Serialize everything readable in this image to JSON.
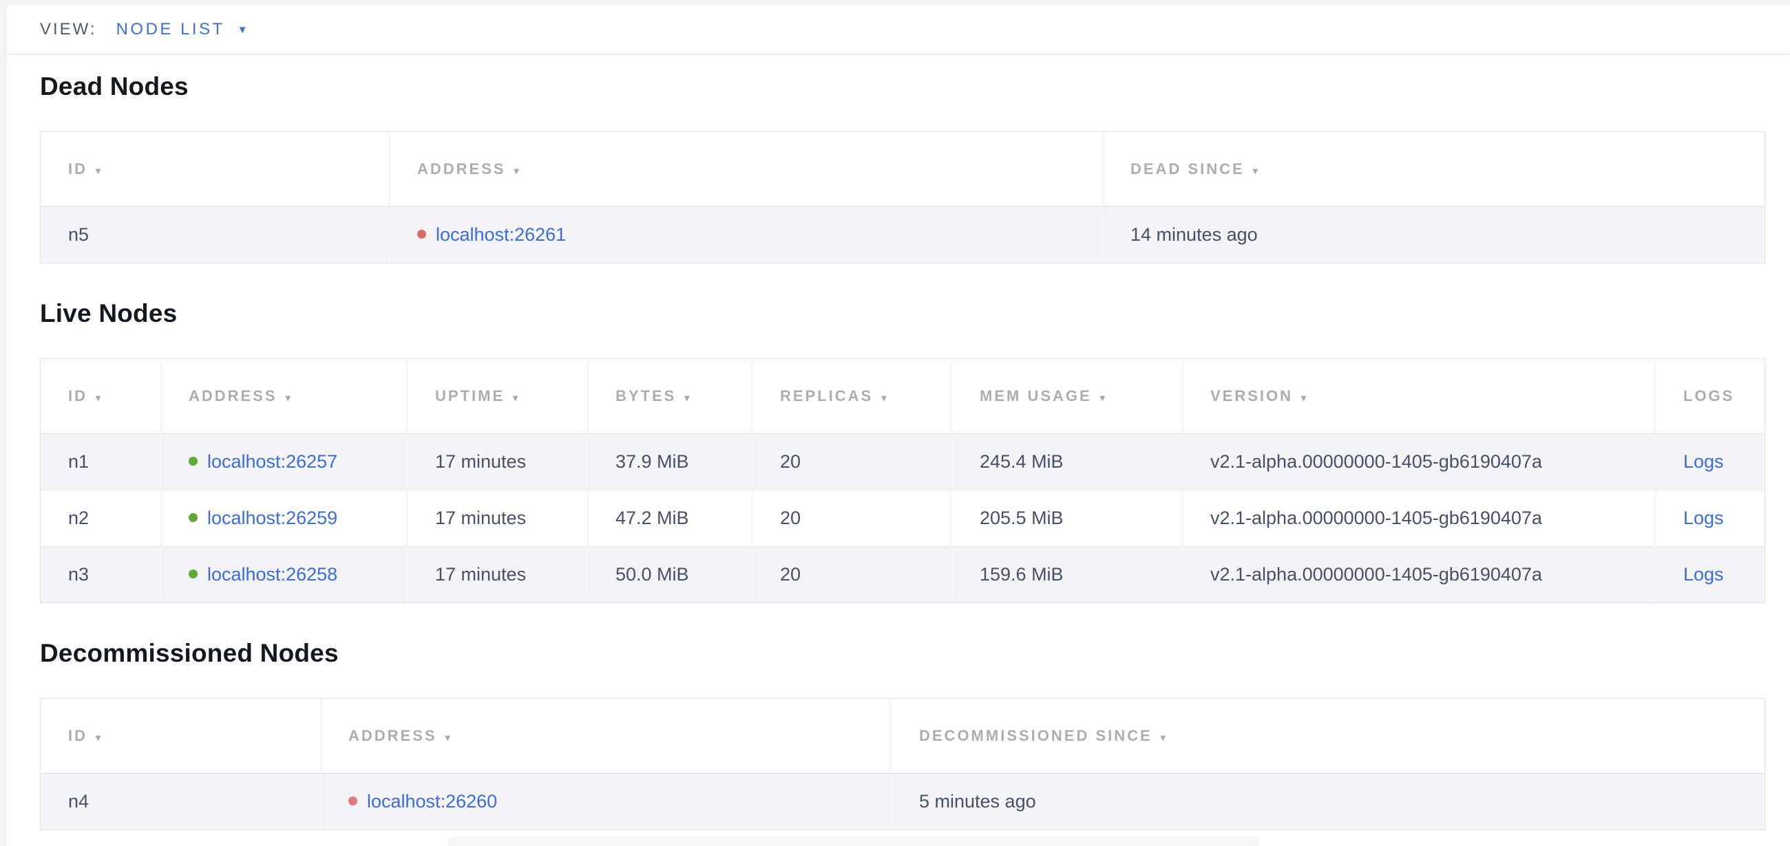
{
  "toolbar": {
    "view_label": "VIEW:",
    "view_value": "NODE LIST"
  },
  "icons": {
    "sort_caret": "▾",
    "dropdown_caret": "▼"
  },
  "colors": {
    "accent_blue": "#3d6edb",
    "link_blue": "#3b6cdb",
    "live_dot_green": "#5eab34",
    "dead_dot_red": "#d96b6b",
    "decommissioned_dot_pink": "#dd7a7e"
  },
  "sections": [
    {
      "id": "dead-nodes",
      "title": "Dead Nodes",
      "dot_color": "#d96b6b",
      "columns": [
        {
          "key": "id",
          "label": "ID",
          "sortable": true,
          "type": "text"
        },
        {
          "key": "address",
          "label": "ADDRESS",
          "sortable": true,
          "type": "address"
        },
        {
          "key": "dead_since",
          "label": "DEAD SINCE",
          "sortable": true,
          "type": "text"
        }
      ],
      "rows": [
        {
          "id": "n5",
          "address": "localhost:26261",
          "dead_since": "14 minutes ago"
        }
      ]
    },
    {
      "id": "live-nodes",
      "title": "Live Nodes",
      "dot_color": "#5eab34",
      "columns": [
        {
          "key": "id",
          "label": "ID",
          "sortable": true,
          "type": "text"
        },
        {
          "key": "address",
          "label": "ADDRESS",
          "sortable": true,
          "type": "address"
        },
        {
          "key": "uptime",
          "label": "UPTIME",
          "sortable": true,
          "type": "text"
        },
        {
          "key": "bytes",
          "label": "BYTES",
          "sortable": true,
          "type": "text"
        },
        {
          "key": "replicas",
          "label": "REPLICAS",
          "sortable": true,
          "type": "text"
        },
        {
          "key": "mem_usage",
          "label": "MEM USAGE",
          "sortable": true,
          "type": "text"
        },
        {
          "key": "version",
          "label": "VERSION",
          "sortable": true,
          "type": "text"
        },
        {
          "key": "logs",
          "label": "LOGS",
          "sortable": false,
          "type": "link"
        }
      ],
      "rows": [
        {
          "id": "n1",
          "address": "localhost:26257",
          "uptime": "17 minutes",
          "bytes": "37.9 MiB",
          "replicas": "20",
          "mem_usage": "245.4 MiB",
          "version": "v2.1-alpha.00000000-1405-gb6190407a",
          "logs": "Logs"
        },
        {
          "id": "n2",
          "address": "localhost:26259",
          "uptime": "17 minutes",
          "bytes": "47.2 MiB",
          "replicas": "20",
          "mem_usage": "205.5 MiB",
          "version": "v2.1-alpha.00000000-1405-gb6190407a",
          "logs": "Logs"
        },
        {
          "id": "n3",
          "address": "localhost:26258",
          "uptime": "17 minutes",
          "bytes": "50.0 MiB",
          "replicas": "20",
          "mem_usage": "159.6 MiB",
          "version": "v2.1-alpha.00000000-1405-gb6190407a",
          "logs": "Logs"
        }
      ]
    },
    {
      "id": "decommissioned-nodes",
      "title": "Decommissioned Nodes",
      "dot_color": "#dd7a7e",
      "columns": [
        {
          "key": "id",
          "label": "ID",
          "sortable": true,
          "type": "text"
        },
        {
          "key": "address",
          "label": "ADDRESS",
          "sortable": true,
          "type": "address"
        },
        {
          "key": "decommissioned_since",
          "label": "DECOMMISSIONED SINCE",
          "sortable": true,
          "type": "text"
        }
      ],
      "rows": [
        {
          "id": "n4",
          "address": "localhost:26260",
          "decommissioned_since": "5 minutes ago"
        }
      ]
    }
  ]
}
